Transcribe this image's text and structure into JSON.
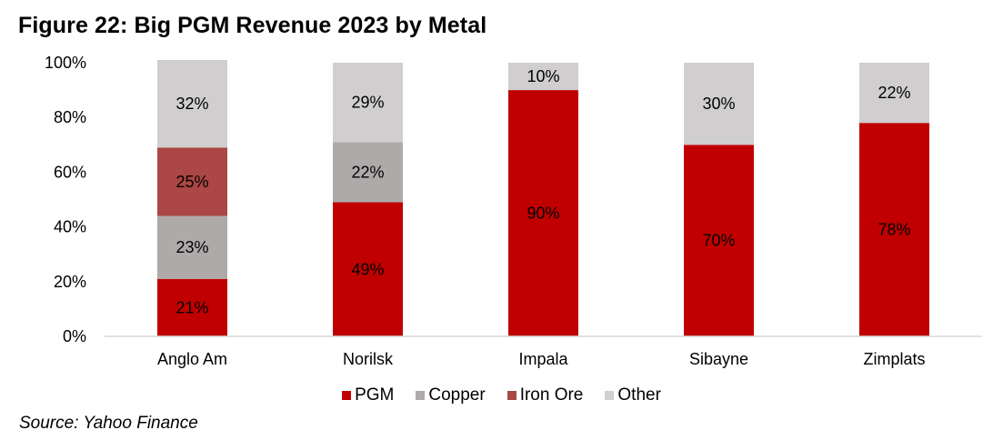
{
  "figure": {
    "title": "Figure 22: Big PGM Revenue 2023 by Metal",
    "source": "Source: Yahoo Finance"
  },
  "chart_data": {
    "type": "bar",
    "stacked": true,
    "title": "Figure 22: Big PGM Revenue 2023 by Metal",
    "xlabel": "",
    "ylabel": "",
    "ylim": [
      0,
      100
    ],
    "y_ticks": [
      "0%",
      "20%",
      "40%",
      "60%",
      "80%",
      "100%"
    ],
    "categories": [
      "Anglo Am",
      "Norilsk",
      "Impala",
      "Sibayne",
      "Zimplats"
    ],
    "series": [
      {
        "name": "PGM",
        "color": "#c00000",
        "values": [
          21,
          49,
          90,
          70,
          78
        ]
      },
      {
        "name": "Copper",
        "color": "#aeaaaa",
        "values": [
          23,
          22,
          0,
          0,
          0
        ]
      },
      {
        "name": "Iron Ore",
        "color": "#ab4744",
        "values": [
          25,
          0,
          0,
          0,
          0
        ]
      },
      {
        "name": "Other",
        "color": "#d0cece",
        "values": [
          32,
          29,
          10,
          30,
          22
        ]
      }
    ],
    "data_labels": true,
    "grid": false,
    "legend": "bottom-center"
  }
}
